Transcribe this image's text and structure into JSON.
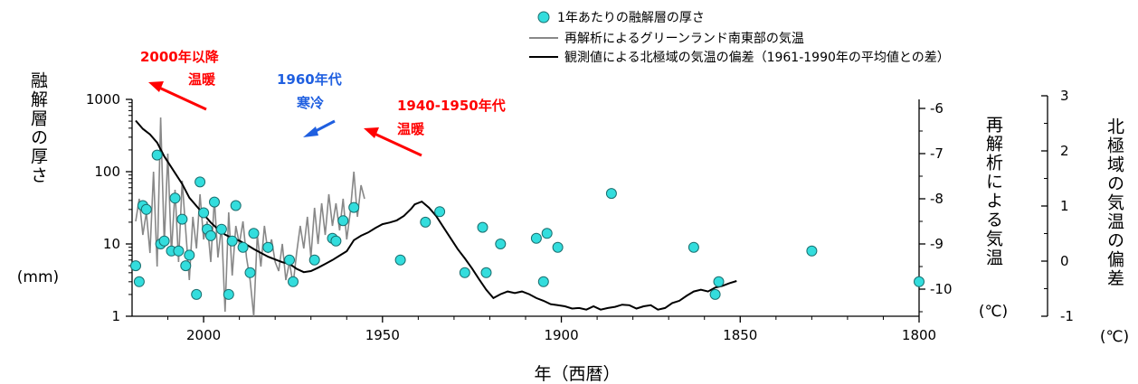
{
  "chart_data": {
    "type": "line",
    "legend": {
      "placement": "top-right",
      "items": [
        {
          "marker": "circle",
          "label": "1年あたりの融解層の厚さ"
        },
        {
          "marker": "gray-line",
          "label": "再解析によるグリーンランド南東部の気温"
        },
        {
          "marker": "black-line",
          "label": "観測値による北極域の気温の偏差（1961-1990年の平均値との差）"
        }
      ]
    },
    "x_axis": {
      "label": "年（西暦）",
      "reversed": true,
      "range": [
        2020,
        1800
      ],
      "ticks": [
        "2000",
        "1950",
        "1900",
        "1850",
        "1800"
      ]
    },
    "y_left": {
      "label": "融解層の厚さ",
      "unit": "(mm)",
      "scale": "log",
      "range": [
        1,
        1000
      ],
      "ticks": [
        "1000",
        "100",
        "10",
        "1"
      ]
    },
    "y_right1": {
      "label": "再解析による気温",
      "unit": "(℃)",
      "range": [
        -10.6,
        -5.8
      ],
      "ticks": [
        "-6",
        "-7",
        "-8",
        "-9",
        "-10"
      ]
    },
    "y_right2": {
      "label": "北極域の気温の偏差",
      "unit": "(℃)",
      "range": [
        -1,
        3
      ],
      "ticks": [
        "3",
        "2",
        "1",
        "0",
        "-1"
      ]
    },
    "annotations": [
      {
        "lines": [
          "2000年以降",
          "温暖"
        ],
        "color": "#ff0000"
      },
      {
        "lines": [
          "1960年代",
          "寒冷"
        ],
        "color": "#1f5fe0"
      },
      {
        "lines": [
          "1940-1950年代",
          "温暖"
        ],
        "color": "#ff0000"
      }
    ],
    "colors": {
      "circle_fill": "#33dddd",
      "reanalysis": "#888888",
      "anomaly": "#000000",
      "warm": "#ff0000",
      "cold": "#1f5fe0"
    },
    "melt_thickness": [
      [
        2019,
        5
      ],
      [
        2018,
        3
      ],
      [
        2017,
        34
      ],
      [
        2016,
        30
      ],
      [
        2013,
        170
      ],
      [
        2012,
        10
      ],
      [
        2011,
        11
      ],
      [
        2009,
        8
      ],
      [
        2008,
        43
      ],
      [
        2007,
        8
      ],
      [
        2006,
        22
      ],
      [
        2005,
        5
      ],
      [
        2004,
        7
      ],
      [
        2002,
        2
      ],
      [
        2001,
        72
      ],
      [
        2000,
        27
      ],
      [
        1999,
        16
      ],
      [
        1998,
        13
      ],
      [
        1997,
        38
      ],
      [
        1995,
        16
      ],
      [
        1993,
        2
      ],
      [
        1992,
        11
      ],
      [
        1991,
        34
      ],
      [
        1989,
        9
      ],
      [
        1987,
        4
      ],
      [
        1986,
        14
      ],
      [
        1982,
        9
      ],
      [
        1976,
        6
      ],
      [
        1975,
        3
      ],
      [
        1969,
        6
      ],
      [
        1964,
        12
      ],
      [
        1963,
        11
      ],
      [
        1961,
        21
      ],
      [
        1958,
        32
      ],
      [
        1945,
        6
      ],
      [
        1938,
        20
      ],
      [
        1934,
        28
      ],
      [
        1927,
        4
      ],
      [
        1922,
        17
      ],
      [
        1921,
        4
      ],
      [
        1917,
        10
      ],
      [
        1907,
        12
      ],
      [
        1905,
        3
      ],
      [
        1904,
        14
      ],
      [
        1901,
        9
      ],
      [
        1886,
        50
      ],
      [
        1863,
        9
      ],
      [
        1857,
        2
      ],
      [
        1856,
        3
      ],
      [
        1830,
        8
      ],
      [
        1800,
        3
      ]
    ],
    "reanalysis_temperature": [
      [
        2019,
        -8.5
      ],
      [
        2018,
        -8.0
      ],
      [
        2017,
        -8.8
      ],
      [
        2016,
        -8.3
      ],
      [
        2015,
        -9.2
      ],
      [
        2014,
        -7.4
      ],
      [
        2013,
        -9.5
      ],
      [
        2012,
        -6.2
      ],
      [
        2011,
        -9.0
      ],
      [
        2010,
        -7.0
      ],
      [
        2009,
        -9.2
      ],
      [
        2008,
        -7.8
      ],
      [
        2007,
        -9.4
      ],
      [
        2006,
        -7.6
      ],
      [
        2005,
        -8.7
      ],
      [
        2004,
        -9.8
      ],
      [
        2003,
        -8.4
      ],
      [
        2002,
        -9.1
      ],
      [
        2001,
        -7.9
      ],
      [
        2000,
        -8.9
      ],
      [
        1999,
        -8.5
      ],
      [
        1998,
        -9.4
      ],
      [
        1997,
        -8.0
      ],
      [
        1996,
        -9.3
      ],
      [
        1995,
        -8.6
      ],
      [
        1994,
        -10.5
      ],
      [
        1993,
        -8.3
      ],
      [
        1992,
        -9.7
      ],
      [
        1991,
        -8.6
      ],
      [
        1990,
        -9.0
      ],
      [
        1989,
        -8.5
      ],
      [
        1988,
        -9.3
      ],
      [
        1987,
        -9.8
      ],
      [
        1986,
        -10.6
      ],
      [
        1985,
        -8.8
      ],
      [
        1984,
        -9.5
      ],
      [
        1983,
        -8.6
      ],
      [
        1982,
        -9.2
      ],
      [
        1981,
        -8.9
      ],
      [
        1980,
        -9.4
      ],
      [
        1979,
        -9.6
      ],
      [
        1978,
        -9.0
      ],
      [
        1977,
        -9.8
      ],
      [
        1976,
        -9.4
      ],
      [
        1975,
        -9.9
      ],
      [
        1974,
        -9.2
      ],
      [
        1973,
        -8.6
      ],
      [
        1972,
        -9.1
      ],
      [
        1971,
        -8.4
      ],
      [
        1970,
        -9.3
      ],
      [
        1969,
        -8.2
      ],
      [
        1968,
        -9.0
      ],
      [
        1967,
        -8.1
      ],
      [
        1966,
        -8.8
      ],
      [
        1965,
        -7.9
      ],
      [
        1964,
        -8.6
      ],
      [
        1963,
        -8.1
      ],
      [
        1962,
        -8.7
      ],
      [
        1961,
        -8.0
      ],
      [
        1960,
        -8.9
      ],
      [
        1959,
        -8.3
      ],
      [
        1958,
        -7.4
      ],
      [
        1957,
        -8.4
      ],
      [
        1956,
        -7.7
      ],
      [
        1955,
        -8.0
      ]
    ],
    "arctic_anomaly": [
      [
        2019,
        2.55
      ],
      [
        2017,
        2.4
      ],
      [
        2015,
        2.3
      ],
      [
        2013,
        2.15
      ],
      [
        2011,
        1.9
      ],
      [
        2008,
        1.6
      ],
      [
        2006,
        1.4
      ],
      [
        2004,
        1.15
      ],
      [
        2002,
        1.0
      ],
      [
        2000,
        0.85
      ],
      [
        1998,
        0.7
      ],
      [
        1996,
        0.58
      ],
      [
        1994,
        0.48
      ],
      [
        1992,
        0.42
      ],
      [
        1990,
        0.37
      ],
      [
        1988,
        0.3
      ],
      [
        1986,
        0.22
      ],
      [
        1984,
        0.15
      ],
      [
        1982,
        0.08
      ],
      [
        1980,
        0.03
      ],
      [
        1978,
        -0.02
      ],
      [
        1976,
        -0.05
      ],
      [
        1974,
        -0.14
      ],
      [
        1972,
        -0.2
      ],
      [
        1970,
        -0.18
      ],
      [
        1968,
        -0.12
      ],
      [
        1966,
        -0.05
      ],
      [
        1964,
        0.02
      ],
      [
        1962,
        0.1
      ],
      [
        1960,
        0.18
      ],
      [
        1958,
        0.38
      ],
      [
        1956,
        0.46
      ],
      [
        1954,
        0.52
      ],
      [
        1952,
        0.6
      ],
      [
        1950,
        0.67
      ],
      [
        1948,
        0.7
      ],
      [
        1946,
        0.74
      ],
      [
        1944,
        0.82
      ],
      [
        1942,
        0.95
      ],
      [
        1941,
        1.03
      ],
      [
        1939,
        1.08
      ],
      [
        1937,
        0.97
      ],
      [
        1935,
        0.82
      ],
      [
        1933,
        0.62
      ],
      [
        1931,
        0.42
      ],
      [
        1929,
        0.22
      ],
      [
        1927,
        0.05
      ],
      [
        1925,
        -0.13
      ],
      [
        1923,
        -0.33
      ],
      [
        1921,
        -0.52
      ],
      [
        1919,
        -0.67
      ],
      [
        1917,
        -0.6
      ],
      [
        1915,
        -0.55
      ],
      [
        1913,
        -0.58
      ],
      [
        1911,
        -0.55
      ],
      [
        1909,
        -0.6
      ],
      [
        1907,
        -0.67
      ],
      [
        1905,
        -0.72
      ],
      [
        1903,
        -0.78
      ],
      [
        1901,
        -0.8
      ],
      [
        1899,
        -0.82
      ],
      [
        1897,
        -0.86
      ],
      [
        1895,
        -0.85
      ],
      [
        1893,
        -0.88
      ],
      [
        1891,
        -0.82
      ],
      [
        1889,
        -0.88
      ],
      [
        1887,
        -0.85
      ],
      [
        1885,
        -0.83
      ],
      [
        1883,
        -0.79
      ],
      [
        1881,
        -0.8
      ],
      [
        1879,
        -0.86
      ],
      [
        1877,
        -0.82
      ],
      [
        1875,
        -0.8
      ],
      [
        1873,
        -0.88
      ],
      [
        1871,
        -0.85
      ],
      [
        1869,
        -0.76
      ],
      [
        1867,
        -0.72
      ],
      [
        1865,
        -0.63
      ],
      [
        1863,
        -0.55
      ],
      [
        1861,
        -0.52
      ],
      [
        1859,
        -0.55
      ],
      [
        1857,
        -0.48
      ],
      [
        1855,
        -0.45
      ],
      [
        1853,
        -0.4
      ],
      [
        1851,
        -0.36
      ]
    ]
  }
}
